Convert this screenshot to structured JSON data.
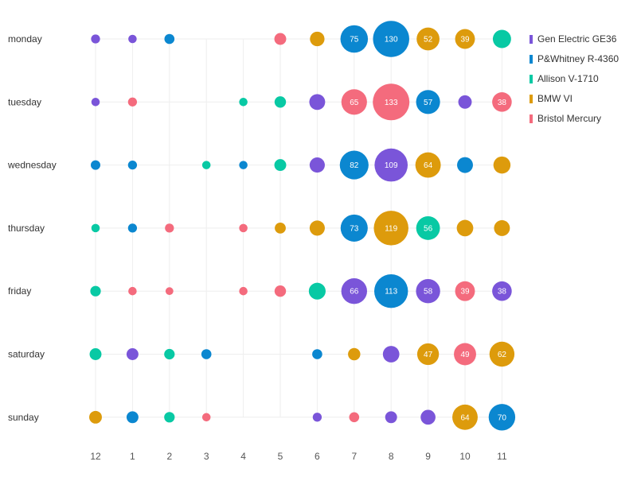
{
  "colors": {
    "Gen Electric GE36": "#7a55d9",
    "P&Whitney R-4360": "#0b87d0",
    "Allison V-1710": "#08c9a4",
    "BMW VI": "#dd9b0c",
    "Bristol Mercury": "#f46b7d"
  },
  "chart_data": {
    "type": "scatter",
    "x_categories": [
      "12",
      "1",
      "2",
      "3",
      "4",
      "5",
      "6",
      "7",
      "8",
      "9",
      "10",
      "11"
    ],
    "y_categories": [
      "monday",
      "tuesday",
      "wednesday",
      "thursday",
      "friday",
      "saturday",
      "sunday"
    ],
    "legend": [
      "Gen Electric GE36",
      "P&Whitney R-4360",
      "Allison V-1710",
      "BMW VI",
      "Bristol Mercury"
    ],
    "legend_position": "top-right",
    "size_domain": [
      0,
      133
    ],
    "points": [
      {
        "day": "monday",
        "hour": "12",
        "series": "Gen Electric GE36",
        "value": 8
      },
      {
        "day": "monday",
        "hour": "1",
        "series": "Gen Electric GE36",
        "value": 7
      },
      {
        "day": "monday",
        "hour": "2",
        "series": "P&Whitney R-4360",
        "value": 10
      },
      {
        "day": "monday",
        "hour": "5",
        "series": "Bristol Mercury",
        "value": 14
      },
      {
        "day": "monday",
        "hour": "6",
        "series": "BMW VI",
        "value": 21
      },
      {
        "day": "monday",
        "hour": "7",
        "series": "P&Whitney R-4360",
        "value": 75,
        "label": "75"
      },
      {
        "day": "monday",
        "hour": "8",
        "series": "P&Whitney R-4360",
        "value": 130,
        "label": "130"
      },
      {
        "day": "monday",
        "hour": "9",
        "series": "BMW VI",
        "value": 52,
        "label": "52"
      },
      {
        "day": "monday",
        "hour": "10",
        "series": "BMW VI",
        "value": 39,
        "label": "39"
      },
      {
        "day": "monday",
        "hour": "11",
        "series": "Allison V-1710",
        "value": 33
      },
      {
        "day": "tuesday",
        "hour": "12",
        "series": "Gen Electric GE36",
        "value": 7
      },
      {
        "day": "tuesday",
        "hour": "1",
        "series": "Bristol Mercury",
        "value": 8
      },
      {
        "day": "tuesday",
        "hour": "4",
        "series": "Allison V-1710",
        "value": 7
      },
      {
        "day": "tuesday",
        "hour": "5",
        "series": "Allison V-1710",
        "value": 13
      },
      {
        "day": "tuesday",
        "hour": "6",
        "series": "Gen Electric GE36",
        "value": 25
      },
      {
        "day": "tuesday",
        "hour": "7",
        "series": "Bristol Mercury",
        "value": 65,
        "label": "65"
      },
      {
        "day": "tuesday",
        "hour": "8",
        "series": "Bristol Mercury",
        "value": 133,
        "label": "133"
      },
      {
        "day": "tuesday",
        "hour": "9",
        "series": "P&Whitney R-4360",
        "value": 57,
        "label": "57"
      },
      {
        "day": "tuesday",
        "hour": "10",
        "series": "Gen Electric GE36",
        "value": 18
      },
      {
        "day": "tuesday",
        "hour": "11",
        "series": "Bristol Mercury",
        "value": 38,
        "label": "38"
      },
      {
        "day": "wednesday",
        "hour": "12",
        "series": "P&Whitney R-4360",
        "value": 9
      },
      {
        "day": "wednesday",
        "hour": "1",
        "series": "P&Whitney R-4360",
        "value": 8
      },
      {
        "day": "wednesday",
        "hour": "3",
        "series": "Allison V-1710",
        "value": 7
      },
      {
        "day": "wednesday",
        "hour": "4",
        "series": "P&Whitney R-4360",
        "value": 7
      },
      {
        "day": "wednesday",
        "hour": "5",
        "series": "Allison V-1710",
        "value": 14
      },
      {
        "day": "wednesday",
        "hour": "6",
        "series": "Gen Electric GE36",
        "value": 23
      },
      {
        "day": "wednesday",
        "hour": "7",
        "series": "P&Whitney R-4360",
        "value": 82,
        "label": "82"
      },
      {
        "day": "wednesday",
        "hour": "8",
        "series": "Gen Electric GE36",
        "value": 109,
        "label": "109"
      },
      {
        "day": "wednesday",
        "hour": "9",
        "series": "BMW VI",
        "value": 64,
        "label": "64"
      },
      {
        "day": "wednesday",
        "hour": "10",
        "series": "P&Whitney R-4360",
        "value": 25
      },
      {
        "day": "wednesday",
        "hour": "11",
        "series": "BMW VI",
        "value": 29
      },
      {
        "day": "thursday",
        "hour": "12",
        "series": "Allison V-1710",
        "value": 7
      },
      {
        "day": "thursday",
        "hour": "1",
        "series": "P&Whitney R-4360",
        "value": 8
      },
      {
        "day": "thursday",
        "hour": "2",
        "series": "Bristol Mercury",
        "value": 8
      },
      {
        "day": "thursday",
        "hour": "4",
        "series": "Bristol Mercury",
        "value": 7
      },
      {
        "day": "thursday",
        "hour": "5",
        "series": "BMW VI",
        "value": 12
      },
      {
        "day": "thursday",
        "hour": "6",
        "series": "BMW VI",
        "value": 23
      },
      {
        "day": "thursday",
        "hour": "7",
        "series": "P&Whitney R-4360",
        "value": 73,
        "label": "73"
      },
      {
        "day": "thursday",
        "hour": "8",
        "series": "BMW VI",
        "value": 119,
        "label": "119"
      },
      {
        "day": "thursday",
        "hour": "9",
        "series": "Allison V-1710",
        "value": 56,
        "label": "56"
      },
      {
        "day": "thursday",
        "hour": "10",
        "series": "BMW VI",
        "value": 27
      },
      {
        "day": "thursday",
        "hour": "11",
        "series": "BMW VI",
        "value": 25
      },
      {
        "day": "friday",
        "hour": "12",
        "series": "Allison V-1710",
        "value": 11
      },
      {
        "day": "friday",
        "hour": "1",
        "series": "Bristol Mercury",
        "value": 7
      },
      {
        "day": "friday",
        "hour": "2",
        "series": "Bristol Mercury",
        "value": 6
      },
      {
        "day": "friday",
        "hour": "4",
        "series": "Bristol Mercury",
        "value": 7
      },
      {
        "day": "friday",
        "hour": "5",
        "series": "Bristol Mercury",
        "value": 13
      },
      {
        "day": "friday",
        "hour": "6",
        "series": "Allison V-1710",
        "value": 28
      },
      {
        "day": "friday",
        "hour": "7",
        "series": "Gen Electric GE36",
        "value": 66,
        "label": "66"
      },
      {
        "day": "friday",
        "hour": "8",
        "series": "P&Whitney R-4360",
        "value": 113,
        "label": "113"
      },
      {
        "day": "friday",
        "hour": "9",
        "series": "Gen Electric GE36",
        "value": 58,
        "label": "58"
      },
      {
        "day": "friday",
        "hour": "10",
        "series": "Bristol Mercury",
        "value": 39,
        "label": "39"
      },
      {
        "day": "friday",
        "hour": "11",
        "series": "Gen Electric GE36",
        "value": 38,
        "label": "38"
      },
      {
        "day": "saturday",
        "hour": "12",
        "series": "Allison V-1710",
        "value": 14
      },
      {
        "day": "saturday",
        "hour": "1",
        "series": "Gen Electric GE36",
        "value": 14
      },
      {
        "day": "saturday",
        "hour": "2",
        "series": "Allison V-1710",
        "value": 11
      },
      {
        "day": "saturday",
        "hour": "3",
        "series": "P&Whitney R-4360",
        "value": 10
      },
      {
        "day": "saturday",
        "hour": "6",
        "series": "P&Whitney R-4360",
        "value": 10
      },
      {
        "day": "saturday",
        "hour": "7",
        "series": "BMW VI",
        "value": 15
      },
      {
        "day": "saturday",
        "hour": "8",
        "series": "Gen Electric GE36",
        "value": 27
      },
      {
        "day": "saturday",
        "hour": "9",
        "series": "BMW VI",
        "value": 47,
        "label": "47"
      },
      {
        "day": "saturday",
        "hour": "10",
        "series": "Bristol Mercury",
        "value": 49,
        "label": "49"
      },
      {
        "day": "saturday",
        "hour": "11",
        "series": "BMW VI",
        "value": 62,
        "label": "62"
      },
      {
        "day": "sunday",
        "hour": "12",
        "series": "BMW VI",
        "value": 16
      },
      {
        "day": "sunday",
        "hour": "1",
        "series": "P&Whitney R-4360",
        "value": 14
      },
      {
        "day": "sunday",
        "hour": "2",
        "series": "Allison V-1710",
        "value": 11
      },
      {
        "day": "sunday",
        "hour": "3",
        "series": "Bristol Mercury",
        "value": 7
      },
      {
        "day": "sunday",
        "hour": "6",
        "series": "Gen Electric GE36",
        "value": 8
      },
      {
        "day": "sunday",
        "hour": "7",
        "series": "Bristol Mercury",
        "value": 10
      },
      {
        "day": "sunday",
        "hour": "8",
        "series": "Gen Electric GE36",
        "value": 14
      },
      {
        "day": "sunday",
        "hour": "9",
        "series": "Gen Electric GE36",
        "value": 22
      },
      {
        "day": "sunday",
        "hour": "10",
        "series": "BMW VI",
        "value": 64,
        "label": "64"
      },
      {
        "day": "sunday",
        "hour": "11",
        "series": "P&Whitney R-4360",
        "value": 70,
        "label": "70"
      }
    ]
  }
}
